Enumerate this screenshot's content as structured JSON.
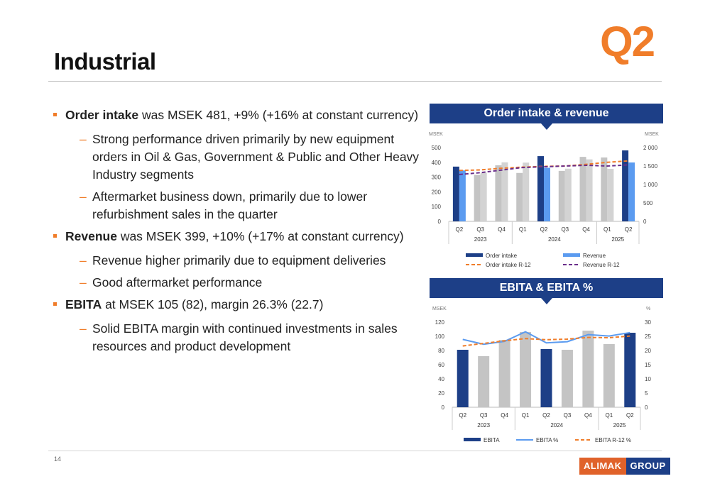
{
  "slide": {
    "title": "Industrial",
    "quarter": "Q2",
    "page_number": "14",
    "logo": {
      "part1": "ALIMAK",
      "part2": "GROUP"
    }
  },
  "bullets": [
    {
      "bold": "Order intake",
      "text": " was MSEK 481, +9% (+16% at constant currency)"
    },
    {
      "sub": true,
      "text": "Strong performance driven primarily by new equipment orders in Oil & Gas, Government & Public and Other Heavy Industry segments"
    },
    {
      "sub": true,
      "text": "Aftermarket business down, primarily due to lower refurbishment sales in the quarter"
    },
    {
      "bold": "Revenue",
      "text": " was MSEK 399, +10% (+17% at constant currency)"
    },
    {
      "sub": true,
      "text": "Revenue higher primarily due to equipment deliveries"
    },
    {
      "sub": true,
      "text": "Good aftermarket performance"
    },
    {
      "bold": "EBITA",
      "text": " at MSEK 105 (82), margin 26.3% (22.7)"
    },
    {
      "sub": true,
      "text": "Solid EBITA margin with continued investments in sales resources and product development"
    }
  ],
  "chart_data": [
    {
      "type": "bar",
      "title": "Order intake & revenue",
      "categories": [
        "Q2",
        "Q3",
        "Q4",
        "Q1",
        "Q2",
        "Q3",
        "Q4",
        "Q1",
        "Q2"
      ],
      "year_groups": [
        {
          "label": "2023",
          "start": 0,
          "end": 2
        },
        {
          "label": "2024",
          "start": 3,
          "end": 6
        },
        {
          "label": "2025",
          "start": 7,
          "end": 8
        }
      ],
      "ylabel_left": "MSEK",
      "ylabel_right": "MSEK",
      "ylim_left": [
        0,
        500
      ],
      "ylim_right": [
        0,
        2000
      ],
      "yticks_left": [
        "0",
        "100",
        "200",
        "300",
        "400",
        "500"
      ],
      "yticks_right": [
        "0",
        "500",
        "1 000",
        "1 500",
        "2 000"
      ],
      "series": [
        {
          "name": "Order intake",
          "kind": "bar",
          "axis": "left",
          "values": [
            371,
            315,
            380,
            328,
            442,
            342,
            437,
            433,
            481
          ],
          "highlight": [
            true,
            false,
            false,
            false,
            true,
            false,
            false,
            false,
            true
          ],
          "color": "#1d3f87",
          "muted_color": "#c4c4c4"
        },
        {
          "name": "Revenue",
          "kind": "bar",
          "axis": "left",
          "values": [
            345,
            330,
            400,
            398,
            363,
            357,
            420,
            356,
            399
          ],
          "highlight": [
            true,
            false,
            false,
            false,
            true,
            false,
            false,
            false,
            true
          ],
          "color": "#5b9bf0",
          "muted_color": "#d3d3d3"
        },
        {
          "name": "Order intake R-12",
          "kind": "line",
          "style": "dashed",
          "axis": "right",
          "values": [
            1380,
            1395,
            1440,
            1470,
            1490,
            1500,
            1545,
            1600,
            1640
          ],
          "color": "#f07d2a"
        },
        {
          "name": "Revenue R-12",
          "kind": "line",
          "style": "dashed",
          "axis": "right",
          "values": [
            1270,
            1320,
            1390,
            1460,
            1480,
            1500,
            1520,
            1500,
            1530
          ],
          "color": "#6a2e8a"
        }
      ]
    },
    {
      "type": "bar",
      "title": "EBITA & EBITA %",
      "categories": [
        "Q2",
        "Q3",
        "Q4",
        "Q1",
        "Q2",
        "Q3",
        "Q4",
        "Q1",
        "Q2"
      ],
      "year_groups": [
        {
          "label": "2023",
          "start": 0,
          "end": 2
        },
        {
          "label": "2024",
          "start": 3,
          "end": 6
        },
        {
          "label": "2025",
          "start": 7,
          "end": 8
        }
      ],
      "ylabel_left": "MSEK",
      "ylabel_right": "%",
      "ylim_left": [
        0,
        120
      ],
      "ylim_right": [
        0,
        30
      ],
      "yticks_left": [
        "0",
        "20",
        "40",
        "60",
        "80",
        "100",
        "120"
      ],
      "yticks_right": [
        "0",
        "5",
        "10",
        "15",
        "20",
        "25",
        "30"
      ],
      "series": [
        {
          "name": "EBITA",
          "kind": "bar",
          "axis": "left",
          "values": [
            81,
            72,
            95,
            106,
            82,
            81,
            108,
            89,
            105
          ],
          "highlight": [
            true,
            false,
            false,
            false,
            true,
            false,
            false,
            false,
            true
          ],
          "color": "#1d3f87",
          "muted_color": "#c4c4c4"
        },
        {
          "name": "EBITA %",
          "kind": "line",
          "style": "solid",
          "axis": "right",
          "values": [
            23.9,
            22.2,
            23.2,
            26.6,
            22.7,
            23.1,
            25.6,
            25.1,
            26.3
          ],
          "color": "#5b9bf0"
        },
        {
          "name": "EBITA R-12 %",
          "kind": "line",
          "style": "dashed",
          "axis": "right",
          "values": [
            21.6,
            22.5,
            23.4,
            24.2,
            23.8,
            24.0,
            24.6,
            24.5,
            25.1
          ],
          "color": "#f07d2a"
        }
      ]
    }
  ]
}
